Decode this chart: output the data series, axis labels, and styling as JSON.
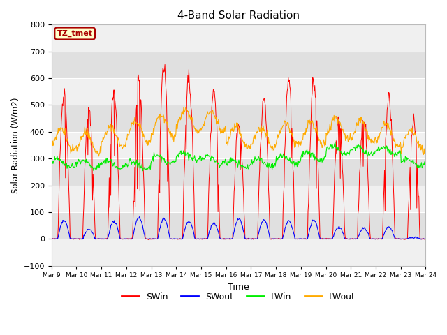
{
  "title": "4-Band Solar Radiation",
  "xlabel": "Time",
  "ylabel": "Solar Radiation (W/m2)",
  "ylim": [
    -100,
    800
  ],
  "colors": {
    "SWin": "#ff0000",
    "SWout": "#0000ff",
    "LWin": "#00ee00",
    "LWout": "#ffaa00"
  },
  "annotation_text": "TZ_tmet",
  "annotation_bg": "#ffffcc",
  "annotation_edge": "#aa0000",
  "tick_labels": [
    "Mar 9",
    "Mar 10",
    "Mar 11",
    "Mar 12",
    "Mar 13",
    "Mar 14",
    "Mar 15",
    "Mar 16",
    "Mar 17",
    "Mar 18",
    "Mar 19",
    "Mar 20",
    "Mar 21",
    "Mar 22",
    "Mar 23",
    "Mar 24"
  ],
  "plot_bg_light": "#f0f0f0",
  "plot_bg_dark": "#e0e0e0",
  "fig_bg": "#ffffff",
  "grid_color": "#ffffff",
  "title_fontsize": 11,
  "band_boundaries": [
    -100,
    0,
    100,
    200,
    300,
    400,
    500,
    600,
    700,
    800
  ],
  "yticks": [
    -100,
    0,
    100,
    200,
    300,
    400,
    500,
    600,
    700,
    800
  ]
}
